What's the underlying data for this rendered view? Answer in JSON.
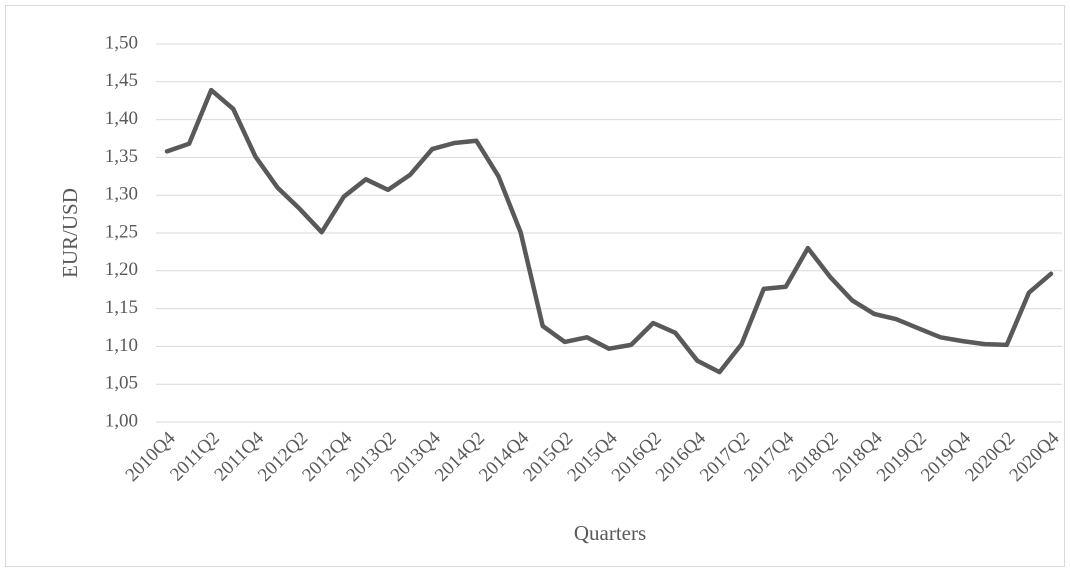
{
  "chart_data": {
    "type": "line",
    "x_label": "Quarters",
    "y_label": "EUR/USD",
    "categories": [
      "2010Q4",
      null,
      "2011Q2",
      null,
      "2011Q4",
      null,
      "2012Q2",
      null,
      "2012Q4",
      null,
      "2013Q2",
      null,
      "2013Q4",
      null,
      "2014Q2",
      null,
      "2014Q4",
      null,
      "2015Q2",
      null,
      "2015Q4",
      null,
      "2016Q2",
      null,
      "2016Q4",
      null,
      "2017Q2",
      null,
      "2017Q4",
      null,
      "2018Q2",
      null,
      "2018Q4",
      null,
      "2019Q2",
      null,
      "2019Q4",
      null,
      "2020Q2",
      null,
      "2020Q4"
    ],
    "values": [
      1.358,
      1.368,
      1.439,
      1.414,
      1.351,
      1.31,
      1.282,
      1.251,
      1.298,
      1.321,
      1.307,
      1.327,
      1.361,
      1.369,
      1.372,
      1.325,
      1.251,
      1.127,
      1.106,
      1.112,
      1.097,
      1.102,
      1.131,
      1.118,
      1.081,
      1.066,
      1.103,
      1.176,
      1.179,
      1.23,
      1.192,
      1.161,
      1.143,
      1.136,
      1.124,
      1.112,
      1.107,
      1.103,
      1.102,
      1.171,
      1.196
    ],
    "color": "#595959",
    "ylim": [
      1.0,
      1.5
    ],
    "yticks": [
      {
        "value": 1.0,
        "label": "1,00"
      },
      {
        "value": 1.05,
        "label": "1,05"
      },
      {
        "value": 1.1,
        "label": "1,10"
      },
      {
        "value": 1.15,
        "label": "1,15"
      },
      {
        "value": 1.2,
        "label": "1,20"
      },
      {
        "value": 1.25,
        "label": "1,25"
      },
      {
        "value": 1.3,
        "label": "1,30"
      },
      {
        "value": 1.35,
        "label": "1,35"
      },
      {
        "value": 1.4,
        "label": "1,40"
      },
      {
        "value": 1.45,
        "label": "1,45"
      },
      {
        "value": 1.5,
        "label": "1,50"
      }
    ],
    "grid": true
  }
}
